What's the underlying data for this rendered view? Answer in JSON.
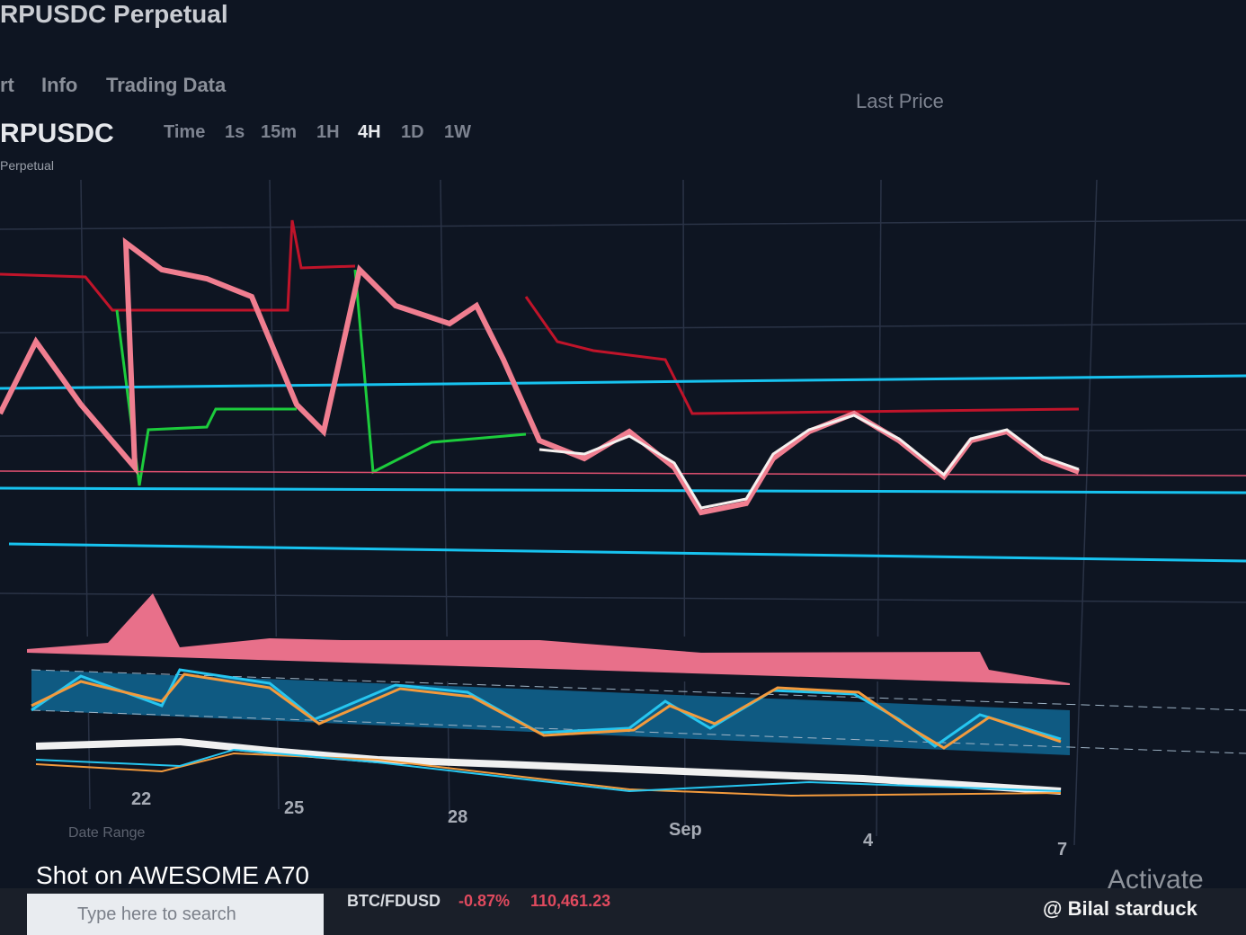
{
  "header": {
    "title": "RPUSDC Perpetual",
    "tabs": [
      "rt",
      "Info",
      "Trading Data"
    ]
  },
  "toolbar": {
    "symbol": "RPUSDC",
    "subtitle": "Perpetual",
    "intervals": [
      "Time",
      "1s",
      "15m",
      "1H",
      "4H",
      "1D",
      "1W"
    ],
    "price_type": "Last Price"
  },
  "chart": {
    "x_labels": [
      "22",
      "25",
      "28",
      "Sep",
      "4",
      "7"
    ],
    "date_range": "Date Range"
  },
  "ticker": {
    "symbol": "BTC/FDUSD",
    "change": "-0.87%",
    "price": "110,461.23"
  },
  "taskbar": {
    "search": "Type here to search"
  },
  "watermark": {
    "activate": "Activate",
    "credit": "@ Bilal starduck",
    "camera": "Shot on AWESOME A70"
  }
}
